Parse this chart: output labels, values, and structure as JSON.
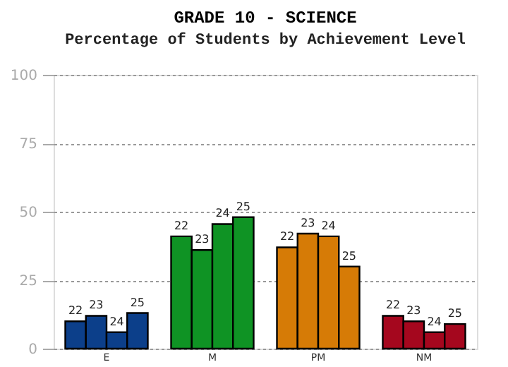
{
  "chart_data": {
    "type": "bar",
    "title": "GRADE 10 - SCIENCE",
    "subtitle": "Percentage of Students by Achievement Level",
    "categories": [
      "E",
      "M",
      "PM",
      "NM"
    ],
    "series": [
      {
        "name": "22",
        "colors": [
          "#0c3f8a",
          "#0f9324",
          "#d67b06",
          "#a5071e"
        ],
        "values": [
          10,
          41,
          37,
          12
        ]
      },
      {
        "name": "23",
        "colors": [
          "#0c3f8a",
          "#0f9324",
          "#d67b06",
          "#a5071e"
        ],
        "values": [
          12,
          36,
          42,
          10
        ]
      },
      {
        "name": "24",
        "colors": [
          "#0c3f8a",
          "#0f9324",
          "#d67b06",
          "#a5071e"
        ],
        "values": [
          6,
          45.5,
          41,
          6
        ]
      },
      {
        "name": "25",
        "colors": [
          "#0c3f8a",
          "#0f9324",
          "#d67b06",
          "#a5071e"
        ],
        "values": [
          13,
          48,
          30,
          9
        ]
      }
    ],
    "ylim": [
      0,
      100
    ],
    "yticks": [
      0,
      25,
      50,
      75,
      100
    ],
    "grid": "y"
  }
}
